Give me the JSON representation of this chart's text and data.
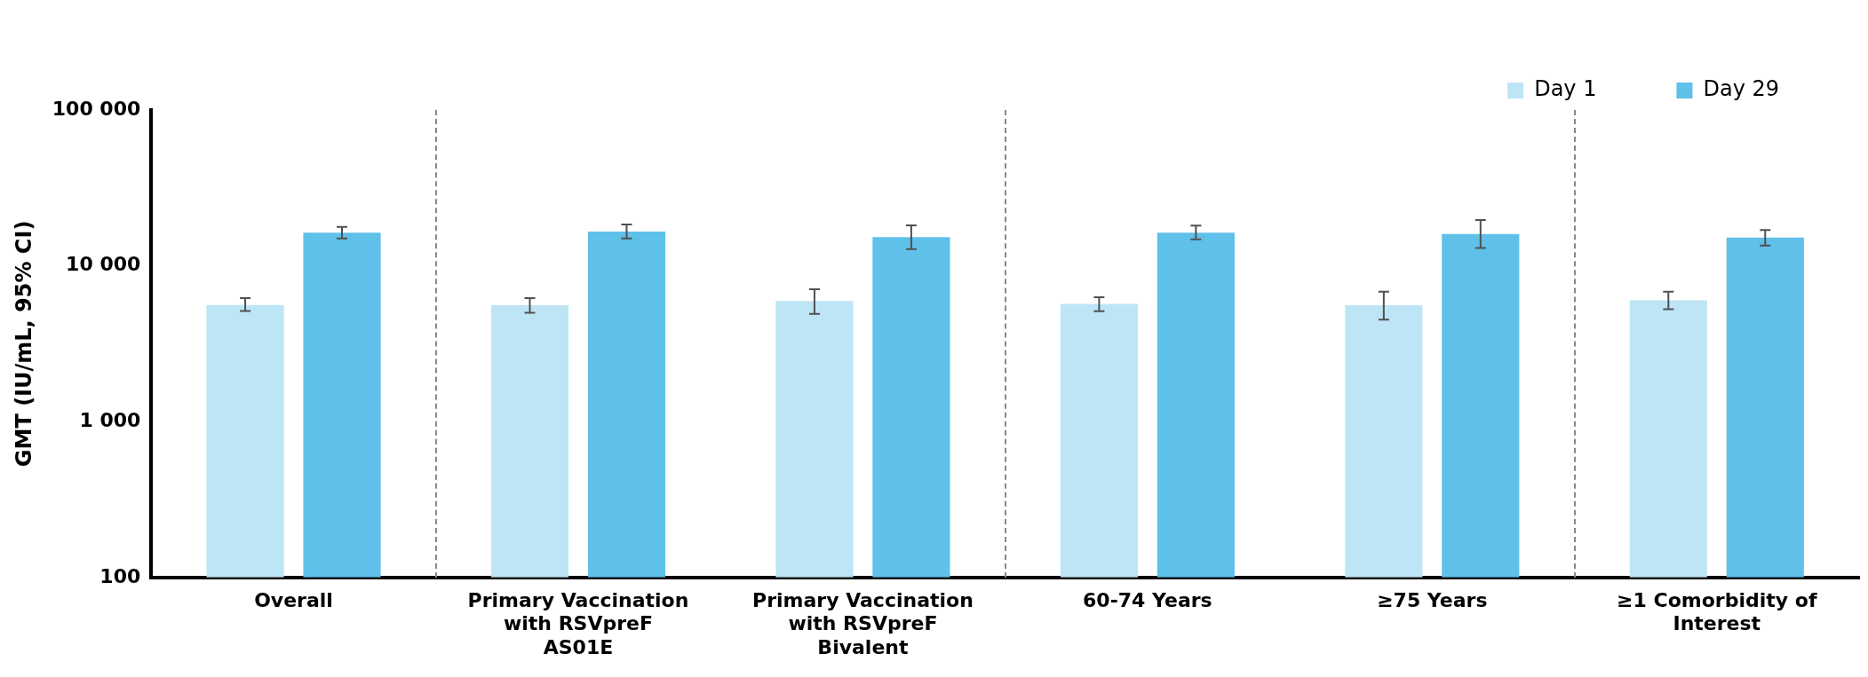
{
  "chart_data": {
    "type": "bar",
    "ylabel": "GMT (IU/mL, 95% CI)",
    "categories": [
      "Overall",
      "Primary Vaccination with RSVpreF AS01E",
      "Primary Vaccination with RSVpreF Bivalent",
      "60-74 Years",
      "≥75 Years",
      "≥1 Comorbidity of Interest"
    ],
    "series": [
      {
        "name": "Day 1",
        "color": "#bee5f6",
        "values": [
          5600,
          5580,
          5940,
          5690,
          5580,
          6000
        ],
        "errors": [
          [
            5130,
            6210
          ],
          [
            4990,
            6210
          ],
          [
            4910,
            7070
          ],
          [
            5110,
            6280
          ],
          [
            4510,
            6820
          ],
          [
            5260,
            6820
          ]
        ]
      },
      {
        "name": "Day 29",
        "color": "#5fc0ea",
        "values": [
          16300,
          16600,
          15300,
          16300,
          16000,
          15200
        ],
        "errors": [
          [
            15000,
            17800
          ],
          [
            15000,
            18400
          ],
          [
            12800,
            18200
          ],
          [
            14800,
            18100
          ],
          [
            13000,
            19700
          ],
          [
            13500,
            17000
          ]
        ]
      }
    ],
    "log": "y",
    "ylim": [
      100,
      100000
    ],
    "yticks": [
      100,
      {
        "value": 1000,
        "label": "1 000"
      },
      {
        "value": 10000,
        "label": "10 000"
      },
      {
        "value": 100000,
        "label": "100 000"
      }
    ],
    "grid": false,
    "legend": "top right"
  }
}
